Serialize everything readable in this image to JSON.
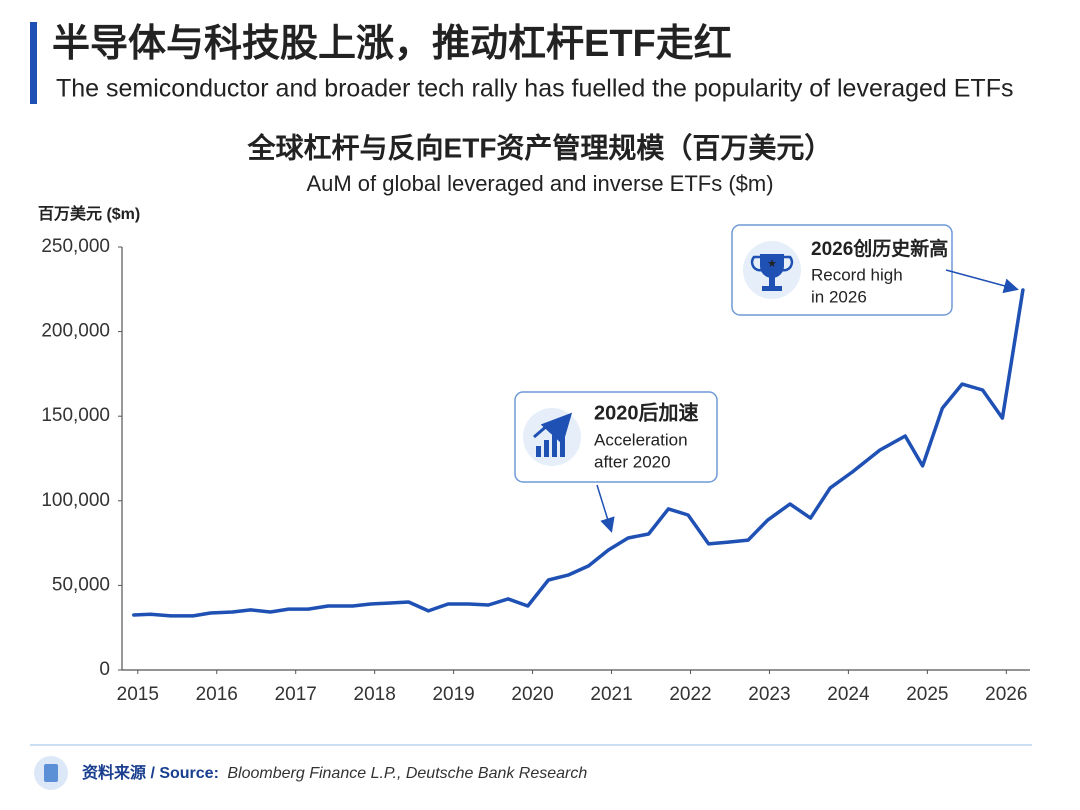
{
  "header": {
    "title": "半导体与科技股上涨，推动杠杆ETF走红",
    "subtitle": "The semiconductor and broader tech rally has fuelled the popularity of leveraged ETFs"
  },
  "chart_data": {
    "type": "line",
    "title": "全球杠杆与反向ETF资产管理规模（百万美元）",
    "subtitle": "AuM of global leveraged and inverse ETFs ($m)",
    "y_label": "百万美元 ($m)",
    "x": [
      2014.95,
      2015.16,
      2015.42,
      2015.7,
      2015.92,
      2016.2,
      2016.43,
      2016.68,
      2016.91,
      2017.16,
      2017.41,
      2017.72,
      2017.95,
      2018.2,
      2018.43,
      2018.68,
      2018.93,
      2019.19,
      2019.44,
      2019.69,
      2019.94,
      2020.2,
      2020.45,
      2020.71,
      2020.96,
      2021.21,
      2021.47,
      2021.72,
      2021.97,
      2022.23,
      2022.48,
      2022.73,
      2022.98,
      2023.26,
      2023.52,
      2023.77,
      2024.05,
      2024.4,
      2024.72,
      2024.94,
      2025.19,
      2025.44,
      2025.7,
      2025.95,
      2026.21
    ],
    "series": [
      {
        "name": "AuM",
        "color": "#1f50b4",
        "values": [
          32500,
          33000,
          32000,
          32000,
          33700,
          34300,
          35500,
          34300,
          36000,
          36000,
          37800,
          37800,
          39000,
          39600,
          40200,
          34900,
          39000,
          39000,
          38400,
          42000,
          37800,
          53200,
          56100,
          61500,
          70900,
          78000,
          80400,
          95200,
          91600,
          74500,
          75600,
          76800,
          88700,
          98100,
          89800,
          107600,
          117000,
          130000,
          138300,
          120600,
          154800,
          169000,
          165500,
          148900,
          224600
        ]
      }
    ],
    "xlim": [
      2014.8,
      2026.3
    ],
    "xticks": [
      2015,
      2016,
      2017,
      2018,
      2019,
      2020,
      2021,
      2022,
      2023,
      2024,
      2025,
      2026
    ],
    "ylim": [
      0,
      250000
    ],
    "yticks": [
      0,
      {
        "value": 50000,
        "label": "50,000"
      },
      {
        "value": 100000,
        "label": "100,000"
      },
      {
        "value": 150000,
        "label": "150,000"
      },
      {
        "value": 200000,
        "label": "200,000"
      },
      {
        "value": 250000,
        "label": "250,000"
      }
    ],
    "grid": false,
    "annotations": [
      {
        "title": "2020后加速",
        "lines": [
          "Acceleration",
          "after 2020"
        ]
      },
      {
        "title": "2026创历史新高",
        "lines": [
          "Record high",
          "in 2026"
        ]
      }
    ]
  },
  "footer": {
    "label": "资料来源 / Source:",
    "text": "Bloomberg Finance L.P., Deutsche Bank Research"
  }
}
